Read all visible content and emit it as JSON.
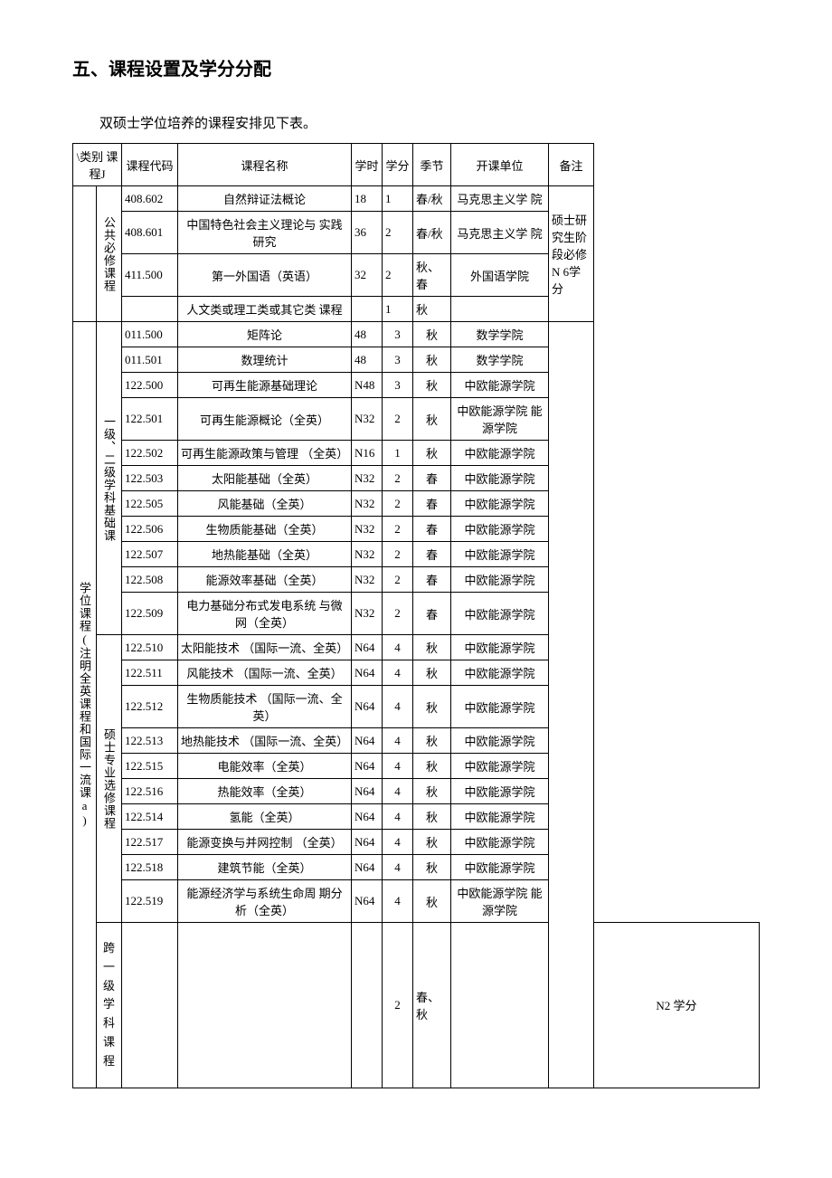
{
  "heading": "五、课程设置及学分分配",
  "intro": "双硕士学位培养的课程安排见下表。",
  "headers": {
    "cat": "\\类别 课程J",
    "code": "课程代码",
    "name": "课程名称",
    "hours": "学时",
    "credit": "学分",
    "season": "季节",
    "unit": "开课单位",
    "note": "备注"
  },
  "cat1_label_degree": "学位课程(注明全英课程和国际一流课a)",
  "subcats": {
    "public": "公共必修课程",
    "foundation": "一级、二级学科基础课",
    "elective": "硕士专业选修课程",
    "cross": "跨一级学科课程"
  },
  "note_public": "硕士研究生阶段必修 N 6学分",
  "cross_note": "N2 学分",
  "public_rows": [
    {
      "code": "408.602",
      "name": "自然辩证法概论",
      "hours": "18",
      "credit": "1",
      "season": "春/秋",
      "unit": "马克思主义学 院"
    },
    {
      "code": "408.601",
      "name": "中国特色社会主义理论与 实践研究",
      "hours": "36",
      "credit": "2",
      "season": "春/秋",
      "unit": "马克思主义学 院"
    },
    {
      "code": "411.500",
      "name": "第一外国语（英语）",
      "hours": "32",
      "credit": "2",
      "season": "秋、春",
      "unit": "外国语学院"
    },
    {
      "code": "",
      "name": "人文类或理工类或其它类 课程",
      "hours": "",
      "credit": "1",
      "season": "秋",
      "unit": ""
    }
  ],
  "foundation_rows": [
    {
      "code": "011.500",
      "name": "矩阵论",
      "hours": "48",
      "credit": "3",
      "season": "秋",
      "unit": "数学学院"
    },
    {
      "code": "011.501",
      "name": "数理统计",
      "hours": "48",
      "credit": "3",
      "season": "秋",
      "unit": "数学学院"
    },
    {
      "code": "122.500",
      "name": "可再生能源基础理论",
      "hours": "N48",
      "credit": "3",
      "season": "秋",
      "unit": "中欧能源学院"
    },
    {
      "code": "122.501",
      "name": "可再生能源概论（全英）",
      "hours": "N32",
      "credit": "2",
      "season": "秋",
      "unit": "中欧能源学院 能源学院"
    },
    {
      "code": "122.502",
      "name": "可再生能源政策与管理 （全英）",
      "hours": "N16",
      "credit": "1",
      "season": "秋",
      "unit": "中欧能源学院"
    },
    {
      "code": "122.503",
      "name": "太阳能基础（全英）",
      "hours": "N32",
      "credit": "2",
      "season": "春",
      "unit": "中欧能源学院"
    },
    {
      "code": "122.505",
      "name": "风能基础（全英）",
      "hours": "N32",
      "credit": "2",
      "season": "春",
      "unit": "中欧能源学院"
    },
    {
      "code": "122.506",
      "name": "生物质能基础（全英）",
      "hours": "N32",
      "credit": "2",
      "season": "春",
      "unit": "中欧能源学院"
    },
    {
      "code": "122.507",
      "name": "地热能基础（全英）",
      "hours": "N32",
      "credit": "2",
      "season": "春",
      "unit": "中欧能源学院"
    },
    {
      "code": "122.508",
      "name": "能源效率基础（全英）",
      "hours": "N32",
      "credit": "2",
      "season": "春",
      "unit": "中欧能源学院"
    },
    {
      "code": "122.509",
      "name": "电力基础分布式发电系统 与微网（全英）",
      "hours": "N32",
      "credit": "2",
      "season": "春",
      "unit": "中欧能源学院"
    }
  ],
  "elective_rows": [
    {
      "code": "122.510",
      "name": "太阳能技术 （国际一流、全英）",
      "hours": "N64",
      "credit": "4",
      "season": "秋",
      "unit": "中欧能源学院"
    },
    {
      "code": "122.511",
      "name": "风能技术 （国际一流、全英）",
      "hours": "N64",
      "credit": "4",
      "season": "秋",
      "unit": "中欧能源学院"
    },
    {
      "code": "122.512",
      "name": "生物质能技术 （国际一流、全英）",
      "hours": "N64",
      "credit": "4",
      "season": "秋",
      "unit": "中欧能源学院"
    },
    {
      "code": "122.513",
      "name": "地热能技术 （国际一流、全英）",
      "hours": "N64",
      "credit": "4",
      "season": "秋",
      "unit": "中欧能源学院"
    },
    {
      "code": "122.515",
      "name": "电能效率（全英）",
      "hours": "N64",
      "credit": "4",
      "season": "秋",
      "unit": "中欧能源学院"
    },
    {
      "code": "122.516",
      "name": "热能效率（全英）",
      "hours": "N64",
      "credit": "4",
      "season": "秋",
      "unit": "中欧能源学院"
    },
    {
      "code": "122.514",
      "name": "氢能（全英）",
      "hours": "N64",
      "credit": "4",
      "season": "秋",
      "unit": "中欧能源学院"
    },
    {
      "code": "122.517",
      "name": "能源变换与并网控制 （全英）",
      "hours": "N64",
      "credit": "4",
      "season": "秋",
      "unit": "中欧能源学院"
    },
    {
      "code": "122.518",
      "name": "建筑节能（全英）",
      "hours": "N64",
      "credit": "4",
      "season": "秋",
      "unit": "中欧能源学院"
    },
    {
      "code": "122.519",
      "name": "能源经济学与系统生命周 期分析（全英）",
      "hours": "N64",
      "credit": "4",
      "season": "秋",
      "unit": "中欧能源学院 能源学院"
    }
  ],
  "cross_row": {
    "code": "",
    "name": "",
    "hours": "",
    "credit": "2",
    "season": "春、秋",
    "unit": ""
  }
}
